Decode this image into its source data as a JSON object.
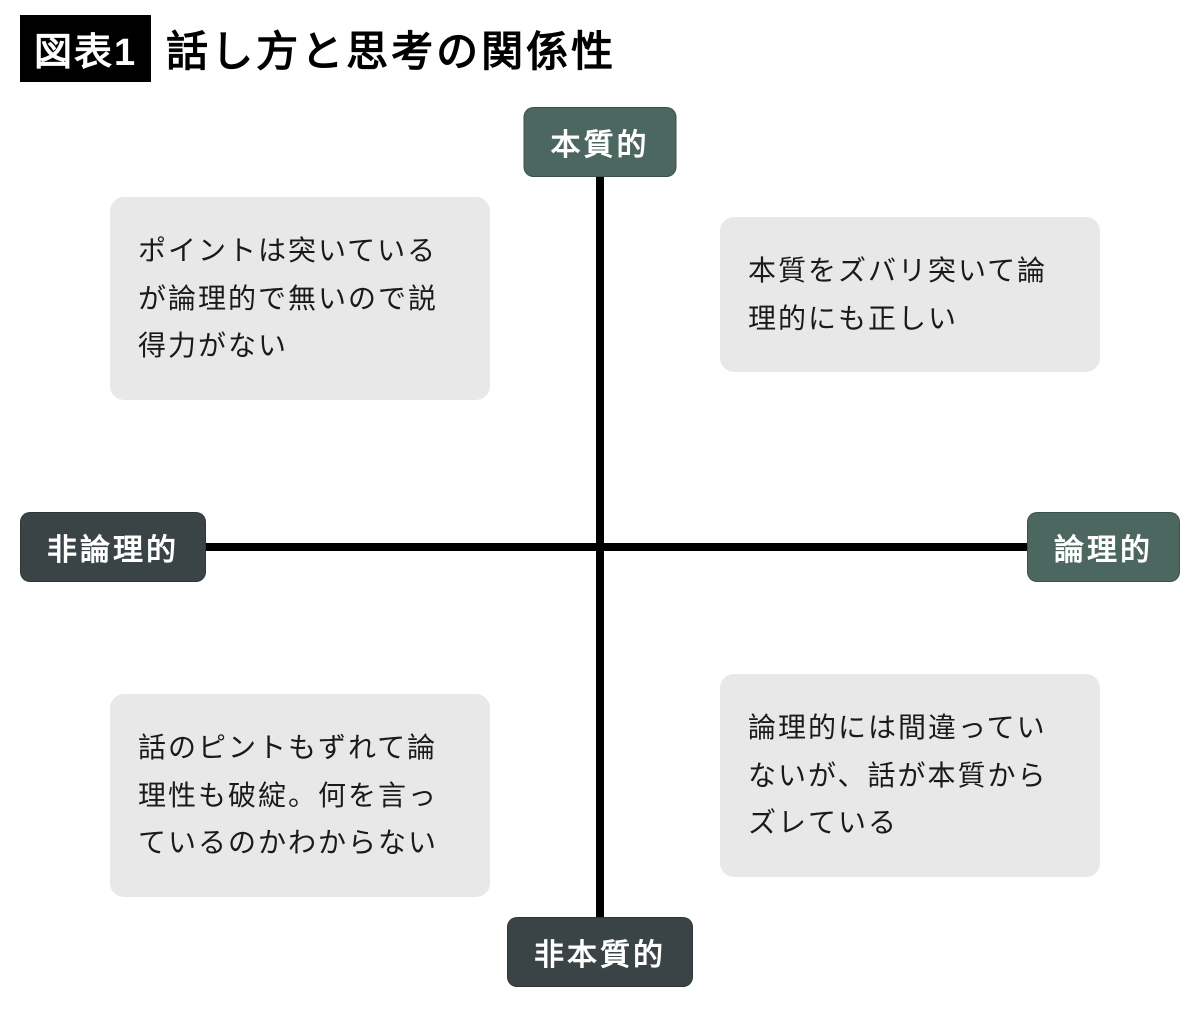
{
  "header": {
    "badge": "図表1",
    "title": "話し方と思考の関係性"
  },
  "diagram": {
    "type": "quadrant",
    "background_color": "#ffffff",
    "axis_color": "#000000",
    "axis_width": 8,
    "axes": {
      "top": {
        "label": "本質的",
        "bg_color": "#4c6660",
        "text_color": "#ffffff"
      },
      "bottom": {
        "label": "非本質的",
        "bg_color": "#3a4447",
        "text_color": "#ffffff"
      },
      "left": {
        "label": "非論理的",
        "bg_color": "#3a4447",
        "text_color": "#ffffff"
      },
      "right": {
        "label": "論理的",
        "bg_color": "#4c6660",
        "text_color": "#ffffff"
      }
    },
    "quadrants": {
      "top_left": {
        "text": "ポイントは突いているが論理的で無いので説得力がない",
        "bg_color": "#e8e8e8"
      },
      "top_right": {
        "text": "本質をズバリ突いて論理的にも正しい",
        "bg_color": "#e8e8e8"
      },
      "bottom_left": {
        "text": "話のピントもずれて論理性も破綻。何を言っているのかわからない",
        "bg_color": "#e8e8e8"
      },
      "bottom_right": {
        "text": "論理的には間違っていないが、話が本質からズレている",
        "bg_color": "#e8e8e8"
      }
    },
    "label_fontsize": 30,
    "quadrant_fontsize": 28,
    "title_fontsize": 42,
    "badge_fontsize": 38
  }
}
